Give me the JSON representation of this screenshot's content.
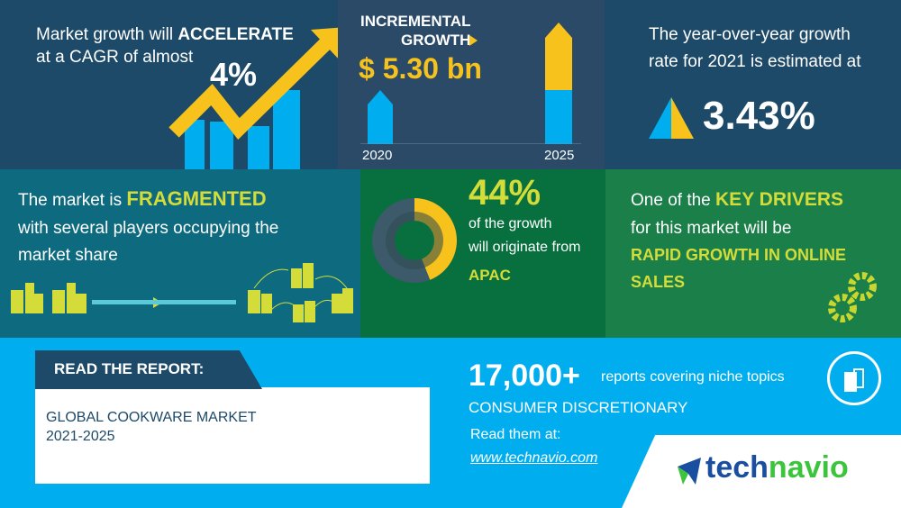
{
  "cagr": {
    "line1_pre": "Market growth will ",
    "line1_bold": "ACCELERATE",
    "line2": "at a CAGR of almost",
    "value": "4%"
  },
  "incremental": {
    "label1": "INCREMENTAL",
    "label2": "GROWTH",
    "value": "$ 5.30 bn",
    "year_start": "2020",
    "year_end": "2025"
  },
  "yoy": {
    "line1": "The year-over-year growth",
    "line2": "rate for 2021 is estimated at",
    "value": "3.43%"
  },
  "fragmented": {
    "line1_pre": "The market is ",
    "line1_bold": "FRAGMENTED",
    "line2": "with several players occupying the",
    "line3": "market share"
  },
  "region": {
    "value": "44%",
    "line1": "of the growth",
    "line2": "will originate from",
    "region": "APAC",
    "share": 0.44
  },
  "drivers": {
    "line1_pre": "One of the ",
    "line1_bold": "KEY DRIVERS",
    "line2": "for this market will be",
    "driver1": "RAPID GROWTH IN ONLINE",
    "driver2": "SALES"
  },
  "report": {
    "header": "READ THE REPORT:",
    "title1": "GLOBAL COOKWARE MARKET",
    "title2": "2021-2025"
  },
  "promo": {
    "count": "17,000+",
    "count_text": "reports covering niche topics",
    "category": "CONSUMER DISCRETIONARY",
    "read": "Read them at:",
    "link": "www.technavio.com"
  },
  "logo": {
    "part1": "tech",
    "part2": "navio"
  },
  "colors": {
    "navy": "#1d4a68",
    "yellow": "#f8c21c",
    "blue": "#00aeef",
    "lime": "#d4dc3a",
    "green": "#0b6e45"
  }
}
